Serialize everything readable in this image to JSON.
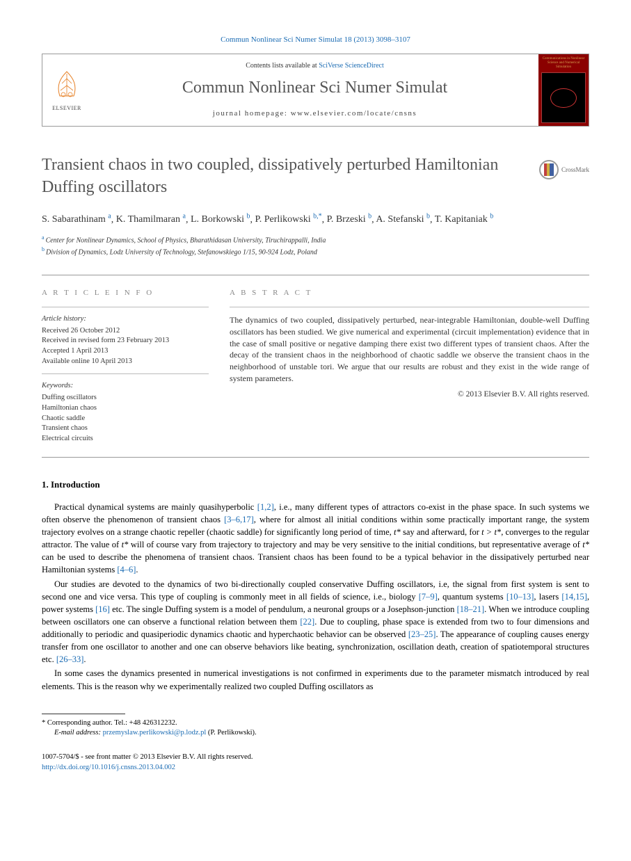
{
  "citation": "Commun Nonlinear Sci Numer Simulat 18 (2013) 3098–3107",
  "header": {
    "contents_prefix": "Contents lists available at ",
    "contents_link": "SciVerse ScienceDirect",
    "journal_name": "Commun Nonlinear Sci Numer Simulat",
    "homepage_label": "journal homepage: ",
    "homepage_url": "www.elsevier.com/locate/cnsns",
    "publisher": "ELSEVIER",
    "cover_title": "Communications in Nonlinear Science and Numerical Simulation"
  },
  "crossmark_label": "CrossMark",
  "article": {
    "title": "Transient chaos in two coupled, dissipatively perturbed Hamiltonian Duffing oscillators",
    "authors_html": "S. Sabarathinam <sup>a</sup>, K. Thamilmaran <sup>a</sup>, L. Borkowski <sup>b</sup>, P. Perlikowski <sup>b,*</sup>, P. Brzeski <sup>b</sup>, A. Stefanski <sup>b</sup>, T. Kapitaniak <sup>b</sup>",
    "authors": [
      {
        "name": "S. Sabarathinam",
        "aff": "a"
      },
      {
        "name": "K. Thamilmaran",
        "aff": "a"
      },
      {
        "name": "L. Borkowski",
        "aff": "b"
      },
      {
        "name": "P. Perlikowski",
        "aff": "b,*"
      },
      {
        "name": "P. Brzeski",
        "aff": "b"
      },
      {
        "name": "A. Stefanski",
        "aff": "b"
      },
      {
        "name": "T. Kapitaniak",
        "aff": "b"
      }
    ],
    "affiliations": [
      {
        "sup": "a",
        "text": "Center for Nonlinear Dynamics, School of Physics, Bharathidasan University, Tiruchirappalli, India"
      },
      {
        "sup": "b",
        "text": "Division of Dynamics, Lodz University of Technology, Stefanowskiego 1/15, 90-924 Lodz, Poland"
      }
    ]
  },
  "info": {
    "label": "A R T I C L E   I N F O",
    "history_heading": "Article history:",
    "history": [
      "Received 26 October 2012",
      "Received in revised form 23 February 2013",
      "Accepted 1 April 2013",
      "Available online 10 April 2013"
    ],
    "keywords_heading": "Keywords:",
    "keywords": [
      "Duffing oscillators",
      "Hamiltonian chaos",
      "Chaotic saddle",
      "Transient chaos",
      "Electrical circuits"
    ]
  },
  "abstract": {
    "label": "A B S T R A C T",
    "text": "The dynamics of two coupled, dissipatively perturbed, near-integrable Hamiltonian, double-well Duffing oscillators has been studied. We give numerical and experimental (circuit implementation) evidence that in the case of small positive or negative damping there exist two different types of transient chaos. After the decay of the transient chaos in the neighborhood of chaotic saddle we observe the transient chaos in the neighborhood of unstable tori. We argue that our results are robust and they exist in the wide range of system parameters.",
    "copyright": "© 2013 Elsevier B.V. All rights reserved."
  },
  "body": {
    "section1_heading": "1. Introduction",
    "para1_parts": [
      {
        "t": "text",
        "v": "Practical dynamical systems are mainly quasihyperbolic "
      },
      {
        "t": "ref",
        "v": "[1,2]"
      },
      {
        "t": "text",
        "v": ", i.e., many different types of attractors co-exist in the phase space. In such systems we often observe the phenomenon of transient chaos "
      },
      {
        "t": "ref",
        "v": "[3–6,17]"
      },
      {
        "t": "text",
        "v": ", where for almost all initial conditions within some practically important range, the system trajectory evolves on a strange chaotic repeller (chaotic saddle) for significantly long period of time, "
      },
      {
        "t": "ital",
        "v": "t*"
      },
      {
        "t": "text",
        "v": " say and afterward, for "
      },
      {
        "t": "ital",
        "v": "t > t*"
      },
      {
        "t": "text",
        "v": ", converges to the regular attractor. The value of "
      },
      {
        "t": "ital",
        "v": "t*"
      },
      {
        "t": "text",
        "v": " will of course vary from trajectory to trajectory and may be very sensitive to the initial conditions, but representative average of "
      },
      {
        "t": "ital",
        "v": "t*"
      },
      {
        "t": "text",
        "v": " can be used to describe the phenomena of transient chaos. Transient chaos has been found to be a typical behavior in the dissipatively perturbed near Hamiltonian systems "
      },
      {
        "t": "ref",
        "v": "[4–6]"
      },
      {
        "t": "text",
        "v": "."
      }
    ],
    "para2_parts": [
      {
        "t": "text",
        "v": "Our studies are devoted to the dynamics of two bi-directionally coupled conservative Duffing oscillators, i.e, the signal from first system is sent to second one and vice versa. This type of coupling is commonly meet in all fields of science, i.e., biology "
      },
      {
        "t": "ref",
        "v": "[7–9]"
      },
      {
        "t": "text",
        "v": ", quantum systems "
      },
      {
        "t": "ref",
        "v": "[10–13]"
      },
      {
        "t": "text",
        "v": ", lasers "
      },
      {
        "t": "ref",
        "v": "[14,15]"
      },
      {
        "t": "text",
        "v": ", power systems "
      },
      {
        "t": "ref",
        "v": "[16]"
      },
      {
        "t": "text",
        "v": " etc. The single Duffing system is a model of pendulum, a neuronal groups or a Josephson-junction "
      },
      {
        "t": "ref",
        "v": "[18–21]"
      },
      {
        "t": "text",
        "v": ". When we introduce coupling between oscillators one can observe a functional relation between them "
      },
      {
        "t": "ref",
        "v": "[22]"
      },
      {
        "t": "text",
        "v": ". Due to coupling, phase space is extended from two to four dimensions and additionally to periodic and quasiperiodic dynamics chaotic and hyperchaotic behavior can be observed "
      },
      {
        "t": "ref",
        "v": "[23–25]"
      },
      {
        "t": "text",
        "v": ". The appearance of coupling causes energy transfer from one oscillator to another and one can observe behaviors like beating, synchronization, oscillation death, creation of spatiotemporal structures etc. "
      },
      {
        "t": "ref",
        "v": "[26–33]"
      },
      {
        "t": "text",
        "v": "."
      }
    ],
    "para3": "In some cases the dynamics presented in numerical investigations is not confirmed in experiments due to the parameter mismatch introduced by real elements. This is the reason why we experimentally realized two coupled Duffing oscillators as"
  },
  "footer": {
    "corresponding": "* Corresponding author. Tel.: +48 426312232.",
    "email_label": "E-mail address: ",
    "email": "przemyslaw.perlikowski@p.lodz.pl",
    "email_author": " (P. Perlikowski).",
    "issn_line": "1007-5704/$ - see front matter © 2013 Elsevier B.V. All rights reserved.",
    "doi": "http://dx.doi.org/10.1016/j.cnsns.2013.04.002"
  },
  "colors": {
    "link": "#1a6bb3",
    "text": "#333333",
    "border": "#999999",
    "cover_bg": "#8b0000",
    "cover_accent": "#d4a050"
  }
}
